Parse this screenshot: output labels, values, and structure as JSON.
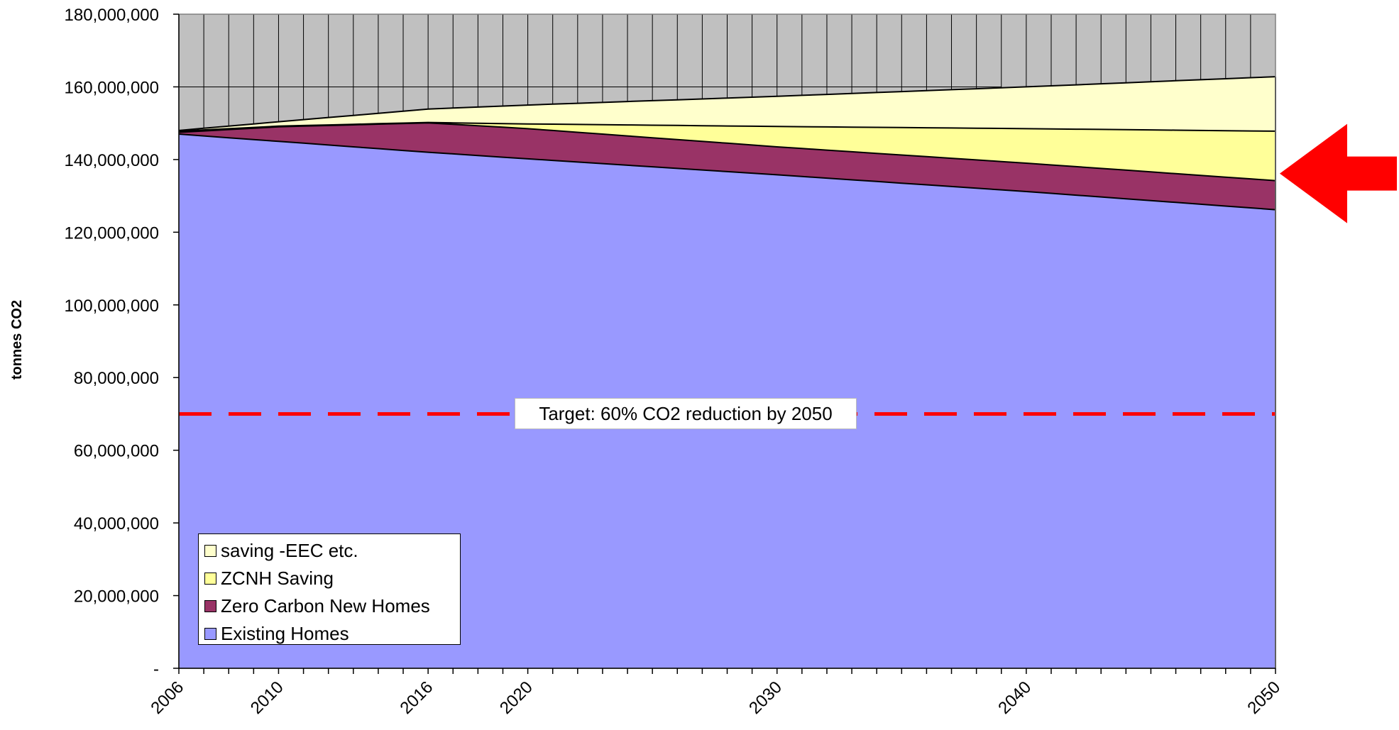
{
  "chart_data": {
    "type": "area",
    "stacked": true,
    "title": "",
    "xlabel": "",
    "ylabel": "tonnes CO2",
    "ylim": [
      0,
      180000000
    ],
    "yticks": [
      0,
      20000000,
      40000000,
      60000000,
      80000000,
      100000000,
      120000000,
      140000000,
      160000000,
      180000000
    ],
    "ytick_labels": [
      "-",
      "20,000,000",
      "40,000,000",
      "60,000,000",
      "80,000,000",
      "100,000,000",
      "120,000,000",
      "140,000,000",
      "160,000,000",
      "180,000,000"
    ],
    "xlim": [
      2006,
      2050
    ],
    "xtick_labels": [
      "2006",
      "2010",
      "2016",
      "2020",
      "2030",
      "2040",
      "2050"
    ],
    "grid": "vertical gridlines per year, horizontal gridlines at major y ticks",
    "legend_position": "bottom-left",
    "background": {
      "color": "#c0c0c0",
      "upper_value": 180000000
    },
    "series": [
      {
        "name": "Existing Homes",
        "color": "#9999ff",
        "points": [
          [
            2006,
            147000000
          ],
          [
            2016,
            142000000
          ],
          [
            2020,
            140200000
          ],
          [
            2030,
            135800000
          ],
          [
            2040,
            131200000
          ],
          [
            2050,
            126200000
          ]
        ]
      },
      {
        "name": "Zero Carbon New Homes",
        "color": "#993366",
        "points": [
          [
            2006,
            147500000
          ],
          [
            2010,
            149000000
          ],
          [
            2016,
            150100000
          ],
          [
            2020,
            148500000
          ],
          [
            2030,
            143500000
          ],
          [
            2040,
            139000000
          ],
          [
            2050,
            134200000
          ]
        ]
      },
      {
        "name": "ZCNH Saving",
        "color": "#ffff99",
        "points": [
          [
            2006,
            147800000
          ],
          [
            2010,
            149200000
          ],
          [
            2016,
            150200000
          ],
          [
            2020,
            149800000
          ],
          [
            2030,
            149100000
          ],
          [
            2040,
            148500000
          ],
          [
            2050,
            147800000
          ]
        ]
      },
      {
        "name": "saving -EEC etc.",
        "color": "#ffffcc",
        "points": [
          [
            2006,
            148000000
          ],
          [
            2010,
            150400000
          ],
          [
            2016,
            153900000
          ],
          [
            2020,
            155000000
          ],
          [
            2030,
            157400000
          ],
          [
            2040,
            160000000
          ],
          [
            2050,
            162800000
          ]
        ]
      }
    ],
    "target_line": {
      "value": 70000000,
      "color": "#ff0000",
      "style": "dashed",
      "label": "Target: 60% CO2 reduction by 2050"
    },
    "arrow": {
      "color": "#ff0000",
      "direction": "left",
      "points_at_value": 134200000,
      "points_at_x": 2050
    }
  }
}
